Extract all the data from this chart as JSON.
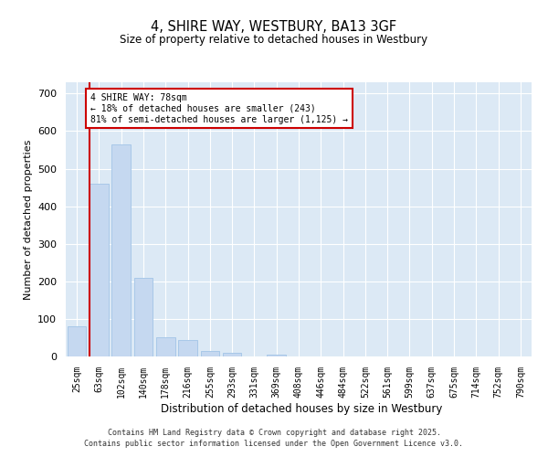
{
  "title": "4, SHIRE WAY, WESTBURY, BA13 3GF",
  "subtitle": "Size of property relative to detached houses in Westbury",
  "xlabel": "Distribution of detached houses by size in Westbury",
  "ylabel": "Number of detached properties",
  "categories": [
    "25sqm",
    "63sqm",
    "102sqm",
    "140sqm",
    "178sqm",
    "216sqm",
    "255sqm",
    "293sqm",
    "331sqm",
    "369sqm",
    "408sqm",
    "446sqm",
    "484sqm",
    "522sqm",
    "561sqm",
    "599sqm",
    "637sqm",
    "675sqm",
    "714sqm",
    "752sqm",
    "790sqm"
  ],
  "values": [
    80,
    460,
    565,
    210,
    50,
    45,
    15,
    10,
    0,
    5,
    0,
    0,
    0,
    0,
    0,
    0,
    0,
    0,
    0,
    0,
    0
  ],
  "bar_color": "#c5d8f0",
  "bar_edge_color": "#a8c8e8",
  "marker_color": "#cc0000",
  "annotation_title": "4 SHIRE WAY: 78sqm",
  "annotation_line1": "← 18% of detached houses are smaller (243)",
  "annotation_line2": "81% of semi-detached houses are larger (1,125) →",
  "annotation_box_color": "#cc0000",
  "ylim": [
    0,
    730
  ],
  "yticks": [
    0,
    100,
    200,
    300,
    400,
    500,
    600,
    700
  ],
  "background_color": "#dce9f5",
  "footer_line1": "Contains HM Land Registry data © Crown copyright and database right 2025.",
  "footer_line2": "Contains public sector information licensed under the Open Government Licence v3.0."
}
